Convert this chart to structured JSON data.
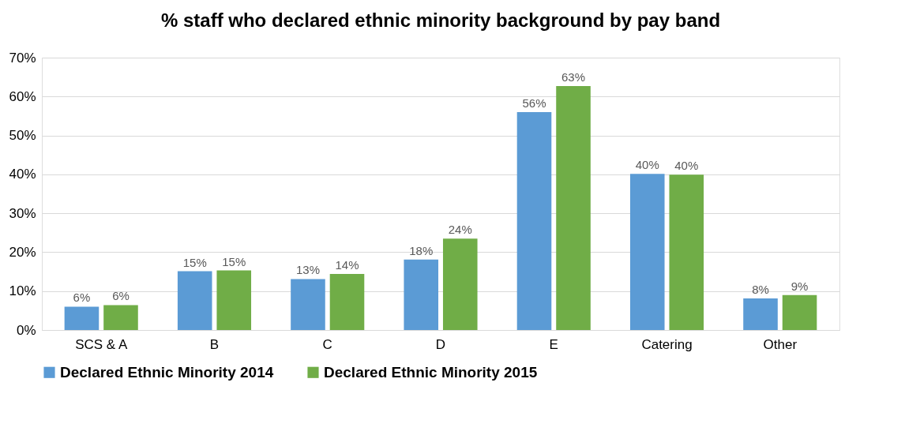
{
  "chart_data": {
    "type": "bar",
    "title": "% staff who declared ethnic minority background by pay band",
    "categories": [
      "SCS & A",
      "B",
      "C",
      "D",
      "E",
      "Catering",
      "Other"
    ],
    "series": [
      {
        "name": "Declared Ethnic Minority 2014",
        "color": "#5b9bd5",
        "values": [
          6.0,
          15.1,
          13.1,
          18.1,
          56.0,
          40.1,
          8.1
        ],
        "value_labels": [
          "6%",
          "15%",
          "13%",
          "18%",
          "56%",
          "40%",
          "8%"
        ]
      },
      {
        "name": "Declared Ethnic Minority 2015",
        "color": "#70ad47",
        "values": [
          6.4,
          15.3,
          14.4,
          23.5,
          62.7,
          39.9,
          9.0
        ],
        "value_labels": [
          "6%",
          "15%",
          "14%",
          "24%",
          "63%",
          "40%",
          "9%"
        ]
      }
    ],
    "ylim": [
      0,
      70
    ],
    "yticks": [
      {
        "value": 0,
        "label": "0%"
      },
      {
        "value": 10,
        "label": "10%"
      },
      {
        "value": 20,
        "label": "20%"
      },
      {
        "value": 30,
        "label": "30%"
      },
      {
        "value": 40,
        "label": "40%"
      },
      {
        "value": 50,
        "label": "50%"
      },
      {
        "value": 60,
        "label": "60%"
      },
      {
        "value": 70,
        "label": "70%"
      }
    ],
    "grid": "y",
    "legend": "bottom"
  }
}
